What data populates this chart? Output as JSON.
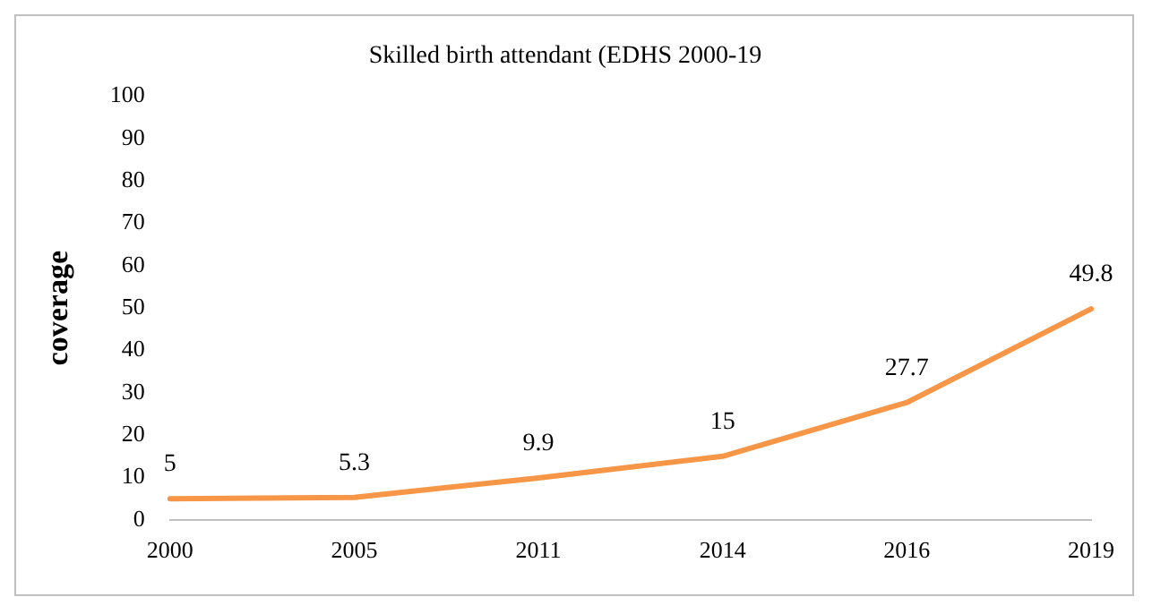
{
  "chart_data": {
    "type": "line",
    "title": "Skilled birth attendant (EDHS 2000-19",
    "ylabel": "coverage",
    "categories": [
      "2000",
      "2005",
      "2011",
      "2014",
      "2016",
      "2019"
    ],
    "series": [
      {
        "color": "#f79646",
        "values": [
          5,
          5.3,
          9.9,
          15,
          27.7,
          49.8
        ]
      }
    ],
    "ylim": [
      0,
      100
    ],
    "yticks": [
      0,
      10,
      20,
      30,
      40,
      50,
      60,
      70,
      80,
      90,
      100
    ],
    "grid": false,
    "legend": false,
    "marker": "none",
    "line_style": "solid",
    "data_labels": true
  }
}
